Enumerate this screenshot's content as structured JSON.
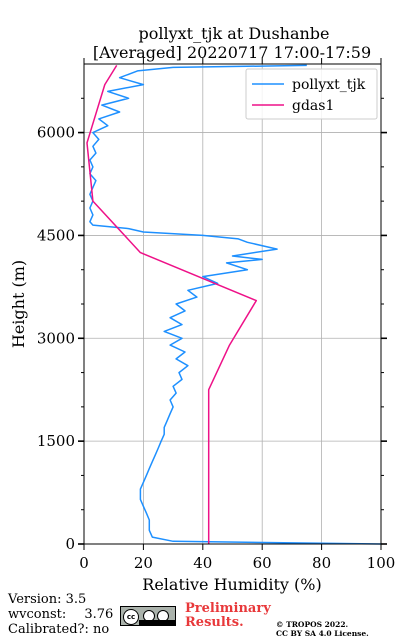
{
  "chart_data": {
    "type": "line",
    "title": [
      "pollyxt_tjk at Dushanbe",
      "[Averaged] 20220717 17:00-17:59"
    ],
    "xlabel": "Relative Humidity (%)",
    "ylabel": "Height (m)",
    "xlim": [
      0,
      100
    ],
    "ylim": [
      0,
      7000
    ],
    "xticks": [
      0,
      20,
      40,
      60,
      80,
      100
    ],
    "yticks": [
      0,
      1500,
      3000,
      4500,
      6000
    ],
    "grid": true,
    "legend_position": "top-right",
    "series": [
      {
        "name": "pollyxt_tjk",
        "color": "#1e90ff",
        "points": [
          [
            100,
            0
          ],
          [
            30,
            40
          ],
          [
            23,
            100
          ],
          [
            22,
            200
          ],
          [
            22,
            350
          ],
          [
            21,
            450
          ],
          [
            20,
            550
          ],
          [
            19,
            650
          ],
          [
            19,
            800
          ],
          [
            20,
            900
          ],
          [
            21,
            1000
          ],
          [
            22,
            1100
          ],
          [
            23,
            1200
          ],
          [
            24,
            1300
          ],
          [
            25,
            1400
          ],
          [
            26,
            1500
          ],
          [
            27,
            1600
          ],
          [
            27,
            1700
          ],
          [
            28,
            1800
          ],
          [
            29,
            1900
          ],
          [
            30,
            2000
          ],
          [
            29,
            2100
          ],
          [
            31,
            2200
          ],
          [
            30,
            2300
          ],
          [
            33,
            2400
          ],
          [
            32,
            2500
          ],
          [
            35,
            2600
          ],
          [
            31,
            2700
          ],
          [
            34,
            2800
          ],
          [
            29,
            2900
          ],
          [
            33,
            3000
          ],
          [
            27,
            3100
          ],
          [
            33,
            3200
          ],
          [
            29,
            3300
          ],
          [
            34,
            3400
          ],
          [
            31,
            3500
          ],
          [
            38,
            3600
          ],
          [
            35,
            3700
          ],
          [
            45,
            3800
          ],
          [
            40,
            3900
          ],
          [
            55,
            4000
          ],
          [
            48,
            4100
          ],
          [
            60,
            4150
          ],
          [
            50,
            4200
          ],
          [
            65,
            4300
          ],
          [
            55,
            4400
          ],
          [
            52,
            4450
          ],
          [
            40,
            4500
          ],
          [
            20,
            4550
          ],
          [
            15,
            4600
          ],
          [
            3,
            4650
          ],
          [
            2,
            4700
          ],
          [
            3,
            4800
          ],
          [
            2,
            4900
          ],
          [
            3,
            5000
          ],
          [
            2,
            5100
          ],
          [
            3,
            5200
          ],
          [
            4,
            5300
          ],
          [
            2,
            5400
          ],
          [
            3,
            5500
          ],
          [
            2,
            5600
          ],
          [
            4,
            5700
          ],
          [
            3,
            5800
          ],
          [
            5,
            5900
          ],
          [
            3,
            6000
          ],
          [
            8,
            6100
          ],
          [
            5,
            6200
          ],
          [
            12,
            6300
          ],
          [
            6,
            6400
          ],
          [
            15,
            6500
          ],
          [
            8,
            6600
          ],
          [
            20,
            6700
          ],
          [
            12,
            6800
          ],
          [
            18,
            6900
          ],
          [
            30,
            6950
          ],
          [
            75,
            6980
          ]
        ]
      },
      {
        "name": "gdas1",
        "color": "#ee1188",
        "points": [
          [
            42,
            0
          ],
          [
            42,
            2250
          ],
          [
            49,
            2900
          ],
          [
            58,
            3550
          ],
          [
            19,
            4250
          ],
          [
            3,
            5000
          ],
          [
            1,
            5850
          ],
          [
            7,
            6700
          ],
          [
            11,
            6980
          ]
        ]
      }
    ]
  },
  "footer": {
    "version_label": "Version:",
    "version_value": "3.5",
    "wvconst_label": "wvconst:",
    "wvconst_value": "3.76",
    "calibrated_label": "Calibrated?:",
    "calibrated_value": "no",
    "preliminary_line1": "Preliminary",
    "preliminary_line2": "Results.",
    "copyright_line1": "© TROPOS 2022.",
    "copyright_line2": "CC BY SA 4.0 License.",
    "license_logo_text": "cc"
  }
}
